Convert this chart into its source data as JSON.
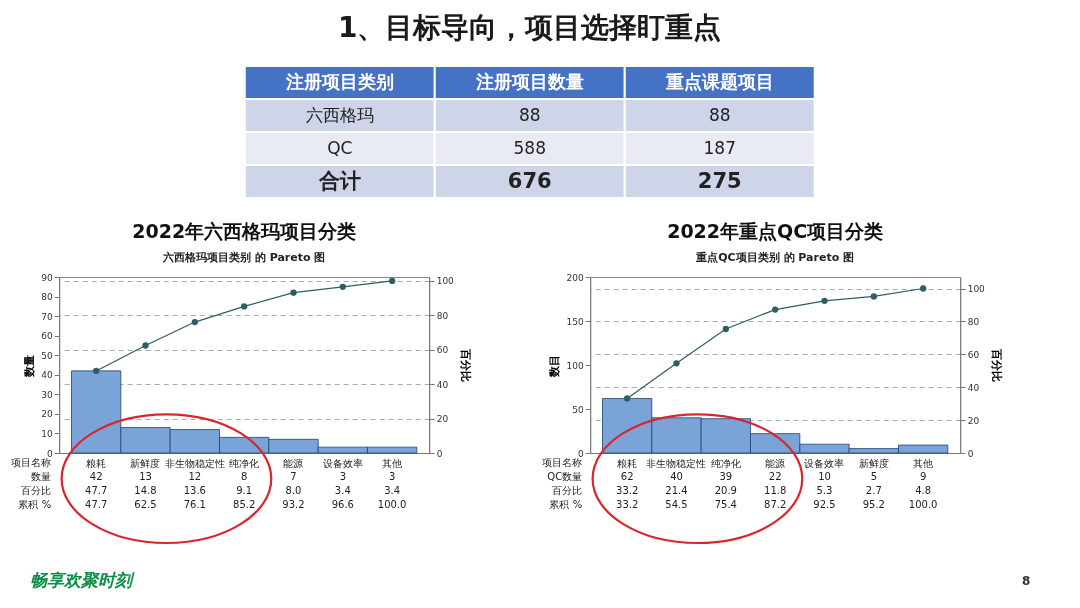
{
  "chart_data": [
    {
      "type": "other",
      "title": "1、目标导向，项目选择盯重点",
      "xlabel": "注册项目类别",
      "categories": [
        "六西格玛",
        "QC",
        "合计"
      ],
      "series": [
        {
          "name": "注册项目数量",
          "colors": [
            "#cfd5e8",
            "#e8ebf4",
            "#cfd5e8"
          ],
          "values": [
            88,
            588,
            676
          ]
        },
        {
          "name": "重点课题项目",
          "colors": [
            "#cfd5e8",
            "#e8ebf4",
            "#cfd5e8"
          ],
          "values": [
            88,
            187,
            275
          ]
        }
      ],
      "data_labels": true,
      "annotations": [
        "畅享欢聚时刻",
        "8"
      ]
    },
    {
      "type": "bar",
      "title": "2022年六西格玛项目分类",
      "subtitle": "六西格玛项目类别 的 Pareto 图",
      "xlabel": "项目名称",
      "ylabel": "数量",
      "y2label": "百分比",
      "categories": [
        "粮耗",
        "新鲜度",
        "非生物稳定性",
        "纯净化",
        "能源",
        "设备效率",
        "其他"
      ],
      "series": [
        {
          "name": "数量",
          "color": "#7aa3d8",
          "values": [
            42,
            13,
            12,
            8,
            7,
            3,
            3
          ],
          "value_labels": [
            "42",
            "13",
            "12",
            "8",
            "7",
            "3",
            "3"
          ]
        },
        {
          "type": "line",
          "axis": "y2",
          "color": "#2e5e62",
          "values": [
            47.7,
            62.5,
            76.1,
            85.2,
            93.2,
            96.6,
            100.0
          ]
        }
      ],
      "ylim": [
        0,
        90
      ],
      "yticks": [
        0,
        10,
        20,
        30,
        40,
        50,
        60,
        70,
        80,
        90
      ],
      "y2lim": [
        0,
        102.3
      ],
      "y2ticks": [
        0,
        20,
        40,
        60,
        80,
        100
      ],
      "grid": "y2",
      "marker": "circle",
      "annotations": [
        "百分比",
        "47.7",
        "14.8",
        "13.6",
        "9.1",
        "8.0",
        "3.4",
        "3.4",
        "累积 %",
        "47.7",
        "62.5",
        "76.1",
        "85.2",
        "93.2",
        "96.6",
        "100.0"
      ]
    },
    {
      "type": "bar",
      "title": "2022年重点QC项目分类",
      "subtitle": "重点QC项目类别 的 Pareto 图",
      "xlabel": "项目名称",
      "ylabel": "数目",
      "y2label": "百分比",
      "categories": [
        "粮耗",
        "非生物稳定性",
        "纯净化",
        "能源",
        "设备效率",
        "新鲜度",
        "其他"
      ],
      "series": [
        {
          "name": "QC数量",
          "color": "#7aa3d8",
          "values": [
            62,
            40,
            39,
            22,
            10,
            5,
            9
          ],
          "value_labels": [
            "62",
            "40",
            "39",
            "22",
            "10",
            "5",
            "9"
          ]
        },
        {
          "type": "line",
          "axis": "y2",
          "color": "#2e5e62",
          "values": [
            33.2,
            54.5,
            75.4,
            87.2,
            92.5,
            95.2,
            100.0
          ]
        }
      ],
      "ylim": [
        0,
        200
      ],
      "yticks": [
        0,
        50,
        100,
        150,
        200
      ],
      "y2lim": [
        0,
        107
      ],
      "y2ticks": [
        0,
        20,
        40,
        60,
        80,
        100
      ],
      "grid": "y2",
      "marker": "circle",
      "annotations": [
        "百分比",
        "33.2",
        "21.4",
        "20.9",
        "11.8",
        "5.3",
        "2.7",
        "4.8",
        "累积 %",
        "33.2",
        "54.5",
        "75.4",
        "87.2",
        "92.5",
        "95.2",
        "100.0"
      ]
    }
  ]
}
